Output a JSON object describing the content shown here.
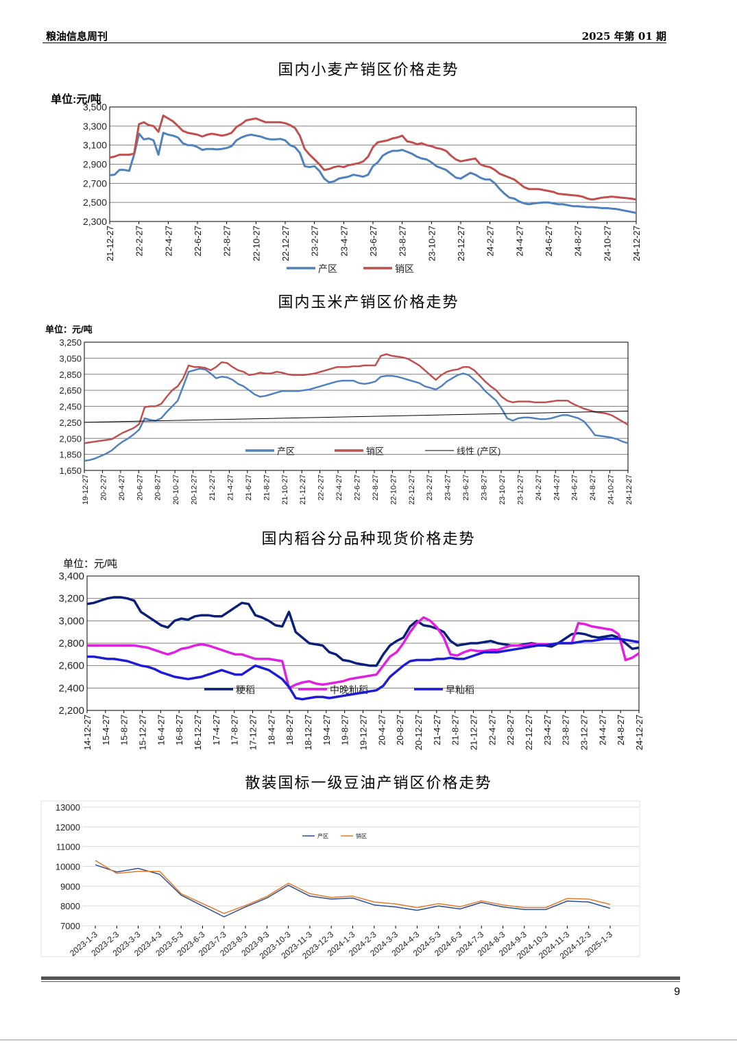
{
  "header": {
    "left": "粮油信息周刊",
    "right": "2025 年第 01 期"
  },
  "page_number": "9",
  "chart_data": [
    {
      "type": "line",
      "title": "国内小麦产销区价格走势",
      "unit_label": "单位:元/吨",
      "ylim": [
        2300,
        3500
      ],
      "yticks": [
        "2,300",
        "2,500",
        "2,700",
        "2,900",
        "3,100",
        "3,300",
        "3,500"
      ],
      "x_ticks": [
        "21-12-27",
        "22-2-27",
        "22-4-27",
        "22-6-27",
        "22-8-27",
        "22-10-27",
        "22-12-27",
        "23-2-27",
        "23-4-27",
        "23-6-27",
        "23-8-27",
        "23-10-27",
        "23-12-27",
        "24-2-27",
        "24-4-27",
        "24-6-27",
        "24-8-27",
        "24-10-27",
        "24-12-27"
      ],
      "legend_position": "bottom",
      "series": [
        {
          "name": "产区",
          "color": "#4f81bd",
          "values": [
            2785,
            2790,
            2840,
            2840,
            2830,
            3000,
            3220,
            3160,
            3170,
            3150,
            3000,
            3230,
            3210,
            3200,
            3180,
            3120,
            3100,
            3100,
            3080,
            3050,
            3060,
            3060,
            3055,
            3060,
            3070,
            3090,
            3150,
            3180,
            3200,
            3210,
            3200,
            3190,
            3170,
            3160,
            3160,
            3165,
            3150,
            3100,
            3080,
            3020,
            2880,
            2870,
            2880,
            2830,
            2750,
            2710,
            2720,
            2750,
            2760,
            2770,
            2790,
            2780,
            2770,
            2790,
            2880,
            2920,
            2990,
            3020,
            3040,
            3040,
            3050,
            3030,
            3010,
            2980,
            2960,
            2950,
            2920,
            2880,
            2860,
            2840,
            2800,
            2760,
            2750,
            2780,
            2810,
            2790,
            2760,
            2740,
            2740,
            2700,
            2640,
            2590,
            2550,
            2540,
            2510,
            2490,
            2480,
            2490,
            2495,
            2500,
            2500,
            2490,
            2480,
            2480,
            2470,
            2460,
            2460,
            2455,
            2450,
            2450,
            2445,
            2440,
            2440,
            2435,
            2430,
            2420,
            2410,
            2400,
            2390
          ]
        },
        {
          "name": "销区",
          "color": "#c0504d",
          "values": [
            2970,
            2980,
            3000,
            3000,
            3000,
            3010,
            3320,
            3340,
            3310,
            3300,
            3240,
            3410,
            3380,
            3350,
            3300,
            3250,
            3230,
            3220,
            3210,
            3190,
            3210,
            3220,
            3210,
            3200,
            3210,
            3230,
            3290,
            3320,
            3360,
            3370,
            3380,
            3360,
            3340,
            3340,
            3340,
            3340,
            3330,
            3310,
            3280,
            3200,
            3060,
            3000,
            2950,
            2900,
            2840,
            2850,
            2870,
            2880,
            2870,
            2890,
            2900,
            2910,
            2930,
            2980,
            3080,
            3130,
            3140,
            3150,
            3170,
            3180,
            3200,
            3140,
            3130,
            3110,
            3120,
            3100,
            3090,
            3070,
            3060,
            3040,
            2990,
            2950,
            2930,
            2940,
            2950,
            2960,
            2900,
            2880,
            2870,
            2840,
            2800,
            2780,
            2760,
            2740,
            2700,
            2660,
            2640,
            2640,
            2640,
            2630,
            2620,
            2610,
            2590,
            2585,
            2580,
            2575,
            2570,
            2560,
            2540,
            2530,
            2540,
            2550,
            2555,
            2560,
            2555,
            2550,
            2545,
            2540,
            2530
          ]
        }
      ]
    },
    {
      "type": "line",
      "title": "国内玉米产销区价格走势",
      "unit_label": "单位：元/吨",
      "ylim": [
        1650,
        3250
      ],
      "yticks": [
        "1,650",
        "1,850",
        "2,050",
        "2,250",
        "2,450",
        "2,650",
        "2,850",
        "3,050",
        "3,250"
      ],
      "x_ticks": [
        "19-12-27",
        "20-2-27",
        "20-4-27",
        "20-6-27",
        "20-8-27",
        "20-10-27",
        "20-12-27",
        "21-2-27",
        "21-4-27",
        "21-6-27",
        "21-8-27",
        "21-10-27",
        "21-12-27",
        "22-2-27",
        "22-4-27",
        "22-6-27",
        "22-8-27",
        "22-10-27",
        "22-12-27",
        "23-2-27",
        "23-4-27",
        "23-6-27",
        "23-8-27",
        "23-10-27",
        "23-12-27",
        "24-2-27",
        "24-4-27",
        "24-6-27",
        "24-8-27",
        "24-10-27",
        "24-12-27"
      ],
      "legend_position": "bottom",
      "series": [
        {
          "name": "产区",
          "color": "#4f81bd",
          "values": [
            1770,
            1780,
            1800,
            1830,
            1860,
            1900,
            1960,
            2010,
            2050,
            2100,
            2160,
            2300,
            2280,
            2270,
            2300,
            2380,
            2450,
            2520,
            2700,
            2880,
            2900,
            2920,
            2910,
            2860,
            2800,
            2820,
            2810,
            2780,
            2730,
            2700,
            2650,
            2600,
            2570,
            2580,
            2600,
            2620,
            2640,
            2640,
            2640,
            2640,
            2650,
            2660,
            2680,
            2700,
            2720,
            2740,
            2760,
            2770,
            2770,
            2770,
            2740,
            2730,
            2740,
            2760,
            2820,
            2830,
            2830,
            2820,
            2800,
            2780,
            2760,
            2740,
            2700,
            2680,
            2660,
            2700,
            2760,
            2800,
            2840,
            2860,
            2840,
            2780,
            2720,
            2640,
            2580,
            2520,
            2420,
            2300,
            2270,
            2300,
            2310,
            2310,
            2300,
            2290,
            2290,
            2300,
            2320,
            2340,
            2340,
            2320,
            2300,
            2260,
            2180,
            2090,
            2080,
            2070,
            2060,
            2040,
            2010,
            1990
          ]
        },
        {
          "name": "销区",
          "color": "#c0504d",
          "values": [
            1990,
            2000,
            2010,
            2020,
            2030,
            2040,
            2080,
            2120,
            2150,
            2180,
            2230,
            2440,
            2450,
            2450,
            2480,
            2570,
            2650,
            2700,
            2800,
            2960,
            2940,
            2940,
            2930,
            2900,
            2940,
            3000,
            2990,
            2940,
            2900,
            2880,
            2840,
            2850,
            2870,
            2860,
            2860,
            2880,
            2870,
            2850,
            2840,
            2840,
            2840,
            2850,
            2860,
            2880,
            2900,
            2920,
            2940,
            2940,
            2940,
            2950,
            2950,
            2960,
            2960,
            2960,
            3080,
            3100,
            3080,
            3070,
            3060,
            3040,
            3000,
            2960,
            2900,
            2840,
            2780,
            2840,
            2880,
            2900,
            2910,
            2940,
            2940,
            2900,
            2830,
            2760,
            2700,
            2650,
            2570,
            2520,
            2500,
            2510,
            2510,
            2510,
            2500,
            2500,
            2500,
            2510,
            2520,
            2520,
            2520,
            2480,
            2450,
            2420,
            2400,
            2380,
            2370,
            2360,
            2340,
            2300,
            2260,
            2220
          ]
        },
        {
          "name": "线性 (产区)",
          "color": "#000000",
          "trend": [
            2250,
            2390
          ]
        }
      ]
    },
    {
      "type": "line",
      "title": "国内稻谷分品种现货价格走势",
      "unit_label": "单位：元/吨",
      "ylim": [
        2200,
        3400
      ],
      "yticks": [
        "2,200",
        "2,400",
        "2,600",
        "2,800",
        "3,000",
        "3,200",
        "3,400"
      ],
      "x_ticks": [
        "14-12-27",
        "15-4-27",
        "15-8-27",
        "15-12-27",
        "16-4-27",
        "16-8-27",
        "16-12-27",
        "17-4-27",
        "17-8-27",
        "17-12-27",
        "18-4-27",
        "18-8-27",
        "18-12-27",
        "19-4-27",
        "19-8-27",
        "19-12-27",
        "20-4-27",
        "20-8-27",
        "20-12-27",
        "21-4-27",
        "21-8-27",
        "21-12-27",
        "22-4-27",
        "22-8-27",
        "22-12-27",
        "23-4-27",
        "23-8-27",
        "23-12-27",
        "24-4-27",
        "24-8-27",
        "24-12-27"
      ],
      "legend_position": "bottom",
      "series": [
        {
          "name": "粳稻",
          "color": "#0a1f7a",
          "values": [
            3150,
            3160,
            3180,
            3200,
            3210,
            3210,
            3200,
            3180,
            3080,
            3040,
            3000,
            2960,
            2940,
            3000,
            3020,
            3010,
            3040,
            3050,
            3050,
            3040,
            3040,
            3080,
            3120,
            3160,
            3150,
            3050,
            3030,
            3000,
            2960,
            2950,
            3080,
            2900,
            2850,
            2800,
            2790,
            2780,
            2720,
            2700,
            2650,
            2640,
            2620,
            2610,
            2600,
            2600,
            2700,
            2780,
            2820,
            2850,
            2950,
            3000,
            2960,
            2950,
            2930,
            2900,
            2820,
            2780,
            2790,
            2800,
            2800,
            2810,
            2820,
            2800,
            2790,
            2780,
            2780,
            2790,
            2800,
            2790,
            2780,
            2770,
            2800,
            2840,
            2880,
            2890,
            2880,
            2860,
            2850,
            2860,
            2870,
            2850,
            2800,
            2750,
            2760
          ]
        },
        {
          "name": "中晚籼稻",
          "color": "#e020e0",
          "values": [
            2780,
            2780,
            2780,
            2780,
            2780,
            2780,
            2780,
            2780,
            2770,
            2760,
            2740,
            2720,
            2700,
            2720,
            2750,
            2760,
            2780,
            2790,
            2780,
            2760,
            2740,
            2720,
            2700,
            2700,
            2680,
            2660,
            2660,
            2660,
            2650,
            2640,
            2400,
            2430,
            2450,
            2460,
            2440,
            2430,
            2440,
            2450,
            2460,
            2480,
            2490,
            2500,
            2510,
            2520,
            2600,
            2680,
            2720,
            2800,
            2900,
            2980,
            3030,
            3000,
            2940,
            2850,
            2700,
            2690,
            2720,
            2740,
            2730,
            2730,
            2740,
            2740,
            2760,
            2780,
            2780,
            2780,
            2790,
            2790,
            2790,
            2790,
            2800,
            2800,
            2800,
            2980,
            2970,
            2950,
            2940,
            2930,
            2920,
            2880,
            2650,
            2670,
            2710
          ]
        },
        {
          "name": "早籼稻",
          "color": "#1c1cd4",
          "values": [
            2680,
            2680,
            2670,
            2660,
            2660,
            2650,
            2640,
            2620,
            2600,
            2590,
            2570,
            2540,
            2520,
            2500,
            2490,
            2480,
            2490,
            2500,
            2520,
            2540,
            2560,
            2540,
            2520,
            2520,
            2560,
            2600,
            2580,
            2560,
            2520,
            2480,
            2410,
            2310,
            2300,
            2310,
            2320,
            2320,
            2310,
            2320,
            2330,
            2340,
            2350,
            2360,
            2370,
            2380,
            2420,
            2500,
            2550,
            2600,
            2640,
            2650,
            2650,
            2650,
            2660,
            2660,
            2670,
            2660,
            2660,
            2680,
            2700,
            2720,
            2720,
            2720,
            2730,
            2740,
            2750,
            2760,
            2770,
            2780,
            2780,
            2790,
            2800,
            2800,
            2800,
            2810,
            2820,
            2820,
            2830,
            2840,
            2840,
            2840,
            2830,
            2820,
            2810
          ]
        }
      ]
    },
    {
      "type": "line",
      "title": "散装国标一级豆油产销区价格走势",
      "ylim": [
        7000,
        13000
      ],
      "yticks": [
        "7000",
        "8000",
        "9000",
        "10000",
        "11000",
        "12000",
        "13000"
      ],
      "categories": [
        "2023-1-3",
        "2023-2-3",
        "2023-3-3",
        "2023-4-3",
        "2023-5-3",
        "2023-6-3",
        "2023-7-3",
        "2023-8-3",
        "2023-9-3",
        "2023-10-3",
        "2023-11-3",
        "2023-12-3",
        "2024-1-3",
        "2024-2-3",
        "2024-3-3",
        "2024-4-3",
        "2024-5-3",
        "2024-6-3",
        "2024-7-3",
        "2024-8-3",
        "2024-9-3",
        "2024-10-3",
        "2024-11-3",
        "2024-12-3",
        "2025-1-3"
      ],
      "legend_position": "top",
      "series": [
        {
          "name": "产区",
          "color": "#2e4f8f",
          "values": [
            10080,
            9720,
            9900,
            9600,
            8550,
            8000,
            7450,
            7950,
            8400,
            9050,
            8500,
            8350,
            8400,
            8050,
            7950,
            7780,
            8000,
            7850,
            8180,
            7950,
            7820,
            7820,
            8250,
            8200,
            7880
          ]
        },
        {
          "name": "销区",
          "color": "#e07b2a",
          "values": [
            10300,
            9650,
            9750,
            9750,
            8620,
            8120,
            7620,
            8020,
            8480,
            9150,
            8620,
            8430,
            8500,
            8200,
            8100,
            7920,
            8120,
            7960,
            8260,
            8050,
            7920,
            7920,
            8380,
            8350,
            8080
          ]
        }
      ]
    }
  ]
}
